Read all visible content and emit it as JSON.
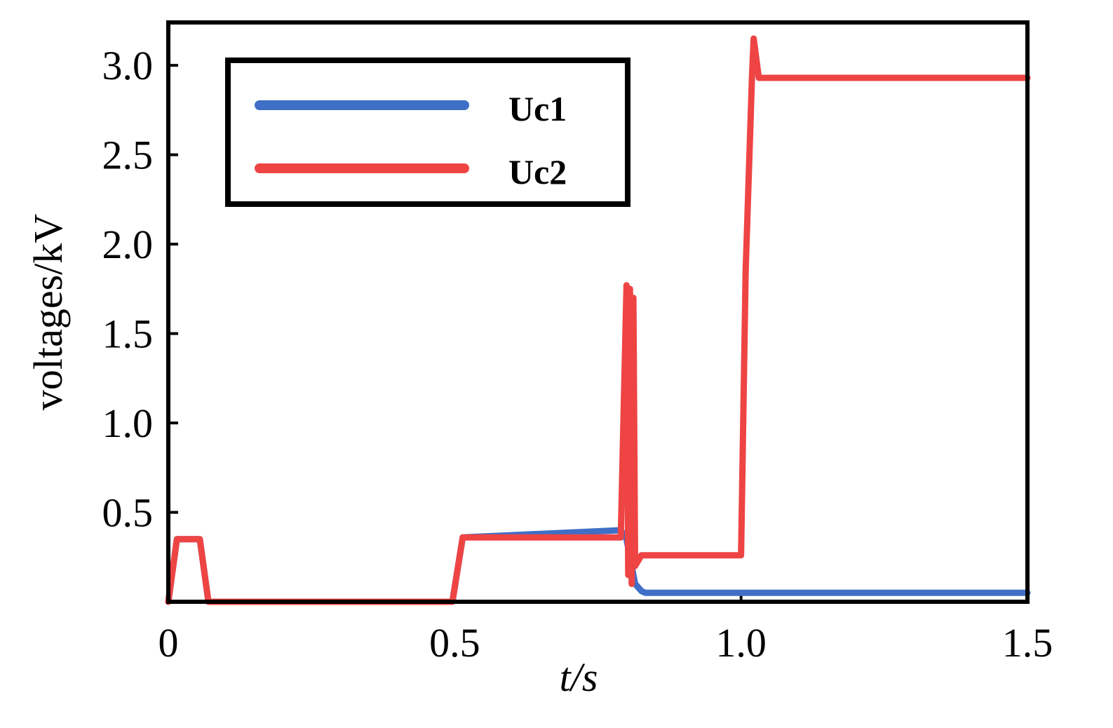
{
  "chart_data": {
    "type": "line",
    "x_label": "t/s",
    "y_label": "voltages/kV",
    "x": [
      0,
      0.015,
      0.055,
      0.07,
      0.496,
      0.514,
      0.79,
      0.8,
      0.803,
      0.806,
      0.809,
      0.812,
      0.815,
      0.826,
      0.833,
      1.0,
      1.008,
      1.019,
      1.022,
      1.031,
      1.5
    ],
    "series": [
      {
        "name": "Uc1",
        "color": "#3f6fc6",
        "values": [
          0,
          0.35,
          0.35,
          0,
          0,
          0.36,
          0.4,
          0.35,
          0.3,
          0.25,
          0.2,
          0.15,
          0.1,
          0.06,
          0.05,
          0.05,
          0.05,
          0.05,
          0.05,
          0.05,
          0.05
        ]
      },
      {
        "name": "Uc2",
        "color": "#ee4444",
        "values": [
          0,
          0.35,
          0.35,
          0,
          0,
          0.36,
          0.36,
          1.77,
          0.15,
          1.75,
          0.1,
          1.7,
          0.2,
          0.26,
          0.26,
          0.26,
          1.85,
          2.93,
          3.15,
          2.93,
          2.93
        ]
      }
    ],
    "xlim": [
      0,
      1.5
    ],
    "ylim": [
      0,
      3.24
    ],
    "xticks": [
      0,
      0.5,
      {
        "value": 1,
        "label": "1.0"
      },
      1.5
    ],
    "yticks": [
      0.5,
      {
        "value": 1,
        "label": "1.0"
      },
      1.5,
      {
        "value": 2,
        "label": "2.0"
      },
      2.5,
      {
        "value": 3,
        "label": "3.0"
      }
    ],
    "legend": "upper left"
  }
}
